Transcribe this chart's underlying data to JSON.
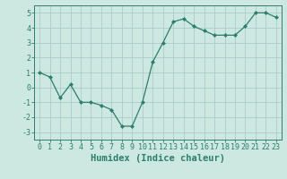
{
  "x": [
    0,
    1,
    2,
    3,
    4,
    5,
    6,
    7,
    8,
    9,
    10,
    11,
    12,
    13,
    14,
    15,
    16,
    17,
    18,
    19,
    20,
    21,
    22,
    23
  ],
  "y": [
    1.0,
    0.7,
    -0.7,
    0.2,
    -1.0,
    -1.0,
    -1.2,
    -1.5,
    -2.6,
    -2.6,
    -1.0,
    1.7,
    3.0,
    4.4,
    4.6,
    4.1,
    3.8,
    3.5,
    3.5,
    3.5,
    4.1,
    5.0,
    5.0,
    4.7
  ],
  "line_color": "#2e7d6e",
  "marker": "D",
  "marker_size": 2.0,
  "bg_color": "#cce8e0",
  "grid_color": "#aacccc",
  "axis_color": "#2e7d6e",
  "xlabel": "Humidex (Indice chaleur)",
  "xlim": [
    -0.5,
    23.5
  ],
  "ylim": [
    -3.5,
    5.5
  ],
  "yticks": [
    -3,
    -2,
    -1,
    0,
    1,
    2,
    3,
    4,
    5
  ],
  "xticks": [
    0,
    1,
    2,
    3,
    4,
    5,
    6,
    7,
    8,
    9,
    10,
    11,
    12,
    13,
    14,
    15,
    16,
    17,
    18,
    19,
    20,
    21,
    22,
    23
  ],
  "tick_fontsize": 6,
  "xlabel_fontsize": 7.5,
  "linewidth": 0.9
}
